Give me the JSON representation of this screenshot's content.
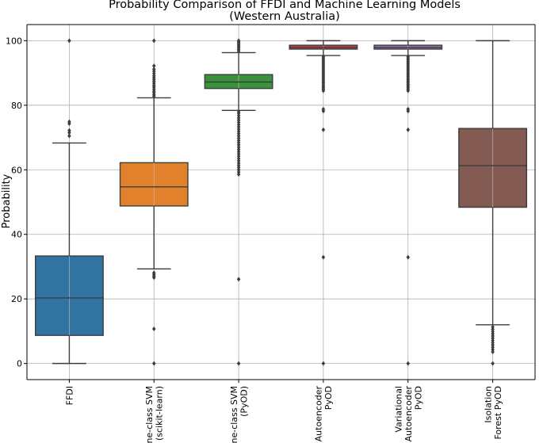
{
  "chart_data": {
    "type": "boxplot",
    "title": "Probability Comparison of FFDI and Machine Learning Models",
    "subtitle": "(Western Australia)",
    "xlabel": "",
    "ylabel": "Probability",
    "ylim": [
      -5,
      105
    ],
    "yticks": [
      0,
      20,
      40,
      60,
      80,
      100
    ],
    "ytick_labels": [
      "0",
      "20",
      "40",
      "60",
      "80",
      "100"
    ],
    "grid": true,
    "categories": [
      [
        "FFDI"
      ],
      [
        "One-class SVM",
        "(scikit-learn)"
      ],
      [
        "One-class SVM",
        "(PyOD)"
      ],
      [
        "Autoencoder",
        "PyOD"
      ],
      [
        "Variational",
        "Autoencoder",
        "PyOD"
      ],
      [
        "Isolation",
        "Forest PyOD"
      ]
    ],
    "series": [
      {
        "name": "FFDI",
        "color": "#3274a1",
        "q1": 8.7,
        "median": 20.3,
        "q3": 33.3,
        "whisker_low": 0,
        "whisker_high": 68.3,
        "outliers": [
          70.5,
          71.5,
          72.2,
          74.3,
          74.9,
          100
        ]
      },
      {
        "name": "One-class SVM (scikit-learn)",
        "color": "#e1812c",
        "q1": 48.8,
        "median": 54.7,
        "q3": 62.2,
        "whisker_low": 29.3,
        "whisker_high": 82.3,
        "outliers": [
          0,
          10.7,
          26.6,
          27.1,
          27.6,
          28.1,
          82.8,
          83.3,
          83.9,
          84.4,
          85.0,
          85.6,
          86.1,
          86.7,
          87.3,
          87.9,
          88.5,
          89.1,
          89.8,
          90.5,
          91.2,
          92.2,
          100
        ]
      },
      {
        "name": "One-class SVM (PyOD)",
        "color": "#3a923a",
        "q1": 85.2,
        "median": 87.2,
        "q3": 89.5,
        "whisker_low": 78.4,
        "whisker_high": 96.3,
        "outliers": [
          0,
          26.1,
          58.6,
          59.3,
          60.0,
          60.7,
          61.4,
          62.1,
          62.8,
          63.5,
          64.2,
          64.9,
          65.6,
          66.3,
          67.0,
          67.7,
          68.4,
          69.1,
          69.8,
          70.5,
          71.2,
          71.9,
          72.6,
          73.3,
          74.0,
          74.7,
          75.4,
          76.1,
          76.8,
          77.5,
          78.0,
          96.8,
          97.3,
          97.8,
          98.2,
          98.6,
          99.0,
          99.4,
          99.8,
          100
        ]
      },
      {
        "name": "Autoencoder PyOD",
        "color": "#c03d3e",
        "q1": 97.4,
        "median": 97.9,
        "q3": 98.6,
        "whisker_low": 95.4,
        "whisker_high": 100,
        "outliers": [
          0,
          32.9,
          72.4,
          78.2,
          78.8,
          84.5,
          85.0,
          85.5,
          86.0,
          86.5,
          87.0,
          87.5,
          88.0,
          88.5,
          89.0,
          89.5,
          90.0,
          90.5,
          91.0,
          91.5,
          92.0,
          92.5,
          93.0,
          93.5,
          94.0,
          94.5,
          95.0
        ]
      },
      {
        "name": "Variational Autoencoder PyOD",
        "color": "#9372b2",
        "q1": 97.4,
        "median": 97.9,
        "q3": 98.6,
        "whisker_low": 95.4,
        "whisker_high": 100,
        "outliers": [
          0,
          32.9,
          72.4,
          78.2,
          78.8,
          84.5,
          85.0,
          85.5,
          86.0,
          86.5,
          87.0,
          87.5,
          88.0,
          88.5,
          89.0,
          89.5,
          90.0,
          90.5,
          91.0,
          91.5,
          92.0,
          92.5,
          93.0,
          93.5,
          94.0,
          94.5,
          95.0
        ]
      },
      {
        "name": "Isolation Forest PyOD",
        "color": "#845b53",
        "q1": 48.4,
        "median": 61.3,
        "q3": 72.8,
        "whisker_low": 12.0,
        "whisker_high": 100,
        "outliers": [
          0,
          3.6,
          4.3,
          5.0,
          5.7,
          6.4,
          7.1,
          7.8,
          8.5,
          9.2,
          9.9,
          10.6,
          11.3
        ]
      }
    ]
  }
}
